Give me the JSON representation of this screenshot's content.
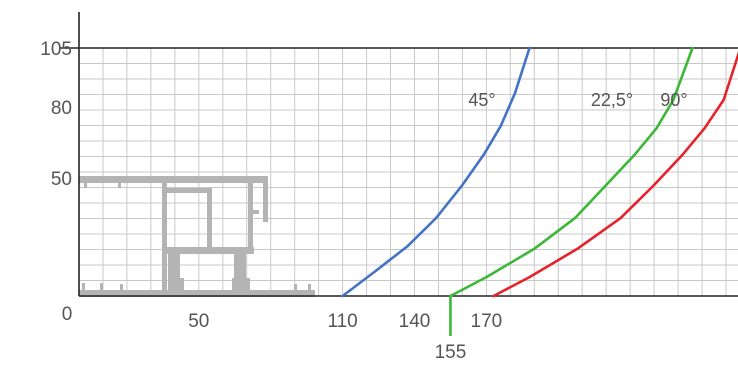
{
  "chart_data": {
    "type": "line",
    "title": "",
    "xlabel": "",
    "ylabel": "",
    "xlim": [
      0,
      275
    ],
    "ylim": [
      0,
      105
    ],
    "grid": true,
    "x_tick_labels": [
      {
        "value": 0,
        "label": "0"
      },
      {
        "value": 50,
        "label": "50"
      },
      {
        "value": 110,
        "label": "110"
      },
      {
        "value": 140,
        "label": "140"
      },
      {
        "value": 155,
        "label": "155"
      },
      {
        "value": 170,
        "label": "170"
      }
    ],
    "y_tick_labels": [
      {
        "value": 105,
        "label": "105"
      },
      {
        "value": 80,
        "label": "80"
      },
      {
        "value": 50,
        "label": "50"
      }
    ],
    "series": [
      {
        "name": "45°",
        "color": "#4472c4",
        "x": [
          110,
          123,
          137,
          149,
          160,
          169,
          176,
          182,
          188
        ],
        "y": [
          0,
          10,
          21,
          33,
          47,
          60,
          72,
          86,
          105
        ]
      },
      {
        "name": "22,5°",
        "color": "#3cb838",
        "x": [
          155,
          170,
          190,
          207,
          220,
          232,
          241,
          248,
          256
        ],
        "y": [
          0,
          8,
          20,
          33,
          47,
          60,
          71,
          83,
          105
        ]
      },
      {
        "name": "90°",
        "color": "#e5232a",
        "x": [
          173,
          188,
          208,
          226,
          240,
          252,
          261,
          269,
          276
        ],
        "y": [
          0,
          8,
          20,
          33,
          47,
          60,
          71,
          83,
          105
        ]
      }
    ],
    "marker_155": {
      "value": 155,
      "color": "#3cb838"
    }
  },
  "colors": {
    "axis": "#222222",
    "grid": "#c8c8c8",
    "profile": "#b4b4b4"
  }
}
